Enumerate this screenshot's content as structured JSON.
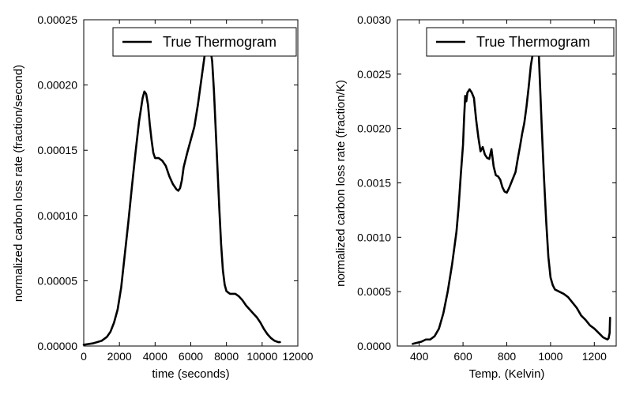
{
  "chart_data": [
    {
      "type": "line",
      "title": "",
      "xlabel": "time (seconds)",
      "ylabel": "normalized carbon loss rate (fraction/second)",
      "xlim": [
        0,
        12000
      ],
      "ylim": [
        0,
        0.00025
      ],
      "xticks": [
        "0",
        "2000",
        "4000",
        "6000",
        "8000",
        "10000",
        "12000"
      ],
      "yticks": [
        "0.00000",
        "0.00005",
        "0.00010",
        "0.00015",
        "0.00020",
        "0.00025"
      ],
      "legend": {
        "position": "top-right"
      },
      "grid": false,
      "series": [
        {
          "name": "True Thermogram",
          "color": "#000000",
          "x": [
            0,
            500,
            1000,
            1300,
            1500,
            1700,
            1900,
            2100,
            2300,
            2500,
            2700,
            2900,
            3100,
            3300,
            3400,
            3500,
            3600,
            3700,
            3800,
            3900,
            4000,
            4100,
            4200,
            4400,
            4600,
            4800,
            5000,
            5200,
            5300,
            5400,
            5500,
            5600,
            5800,
            6000,
            6200,
            6400,
            6600,
            6800,
            6900,
            7000,
            7050,
            7100,
            7200,
            7300,
            7400,
            7500,
            7600,
            7700,
            7800,
            7900,
            8000,
            8100,
            8200,
            8300,
            8500,
            8700,
            8900,
            9100,
            9300,
            9500,
            9700,
            9900,
            10100,
            10300,
            10500,
            10700,
            10900,
            11000
          ],
          "y": [
            1e-06,
            2e-06,
            4e-06,
            7e-06,
            1.1e-05,
            1.8e-05,
            2.8e-05,
            4.5e-05,
            7e-05,
            9.5e-05,
            0.000122,
            0.000148,
            0.000172,
            0.00019,
            0.000195,
            0.000193,
            0.000185,
            0.00017,
            0.000158,
            0.000148,
            0.000144,
            0.000144,
            0.000144,
            0.000142,
            0.000138,
            0.00013,
            0.000124,
            0.00012,
            0.000119,
            0.000121,
            0.000127,
            0.000137,
            0.000148,
            0.000158,
            0.000168,
            0.000185,
            0.000205,
            0.000225,
            0.000232,
            0.000233,
            0.00023,
            0.000228,
            0.000218,
            0.000195,
            0.000165,
            0.000135,
            0.000105,
            7.8e-05,
            5.8e-05,
            4.7e-05,
            4.2e-05,
            4.1e-05,
            4e-05,
            4e-05,
            4e-05,
            3.8e-05,
            3.5e-05,
            3.1e-05,
            2.8e-05,
            2.5e-05,
            2.2e-05,
            1.8e-05,
            1.3e-05,
            9e-06,
            6e-06,
            4e-06,
            3e-06,
            3e-06
          ]
        }
      ]
    },
    {
      "type": "line",
      "title": "",
      "xlabel": "Temp. (Kelvin)",
      "ylabel": "normalized carbon loss rate (fraction/K)",
      "xlim": [
        300,
        1300
      ],
      "ylim": [
        0,
        0.003
      ],
      "xticks": [
        "400",
        "600",
        "800",
        "1000",
        "1200"
      ],
      "yticks": [
        "0.0000",
        "0.0005",
        "0.0010",
        "0.0015",
        "0.0020",
        "0.0025",
        "0.0030"
      ],
      "legend": {
        "position": "top-right"
      },
      "grid": false,
      "series": [
        {
          "name": "True Thermogram",
          "color": "#000000",
          "x": [
            370,
            390,
            410,
            430,
            450,
            470,
            490,
            510,
            530,
            550,
            570,
            580,
            590,
            600,
            605,
            610,
            615,
            620,
            630,
            640,
            650,
            660,
            670,
            680,
            690,
            700,
            710,
            720,
            730,
            740,
            750,
            760,
            770,
            780,
            790,
            800,
            810,
            820,
            830,
            840,
            850,
            860,
            870,
            880,
            890,
            900,
            910,
            920,
            930,
            935,
            940,
            945,
            950,
            960,
            970,
            980,
            990,
            1000,
            1010,
            1020,
            1040,
            1060,
            1080,
            1100,
            1120,
            1140,
            1160,
            1180,
            1200,
            1220,
            1240,
            1260,
            1265,
            1270,
            1272
          ],
          "y": [
            2e-05,
            3e-05,
            4e-05,
            6e-05,
            6e-05,
            9e-05,
            0.00016,
            0.0003,
            0.0005,
            0.00075,
            0.00105,
            0.00128,
            0.00158,
            0.00185,
            0.0021,
            0.0023,
            0.00225,
            0.00233,
            0.00236,
            0.00233,
            0.00228,
            0.00208,
            0.00192,
            0.00179,
            0.00183,
            0.00176,
            0.00173,
            0.00172,
            0.00181,
            0.00165,
            0.00157,
            0.00156,
            0.00153,
            0.00146,
            0.00142,
            0.00141,
            0.00145,
            0.0015,
            0.00155,
            0.0016,
            0.00172,
            0.00183,
            0.00195,
            0.00205,
            0.0022,
            0.00238,
            0.00258,
            0.0027,
            0.00268,
            0.00275,
            0.0027,
            0.00275,
            0.0025,
            0.002,
            0.00155,
            0.00115,
            0.00082,
            0.00063,
            0.00056,
            0.00052,
            0.0005,
            0.00048,
            0.00045,
            0.0004,
            0.00035,
            0.00028,
            0.00024,
            0.00019,
            0.00016,
            0.00012,
            8e-05,
            6e-05,
            7e-05,
            0.00012,
            0.00026
          ]
        }
      ]
    }
  ]
}
